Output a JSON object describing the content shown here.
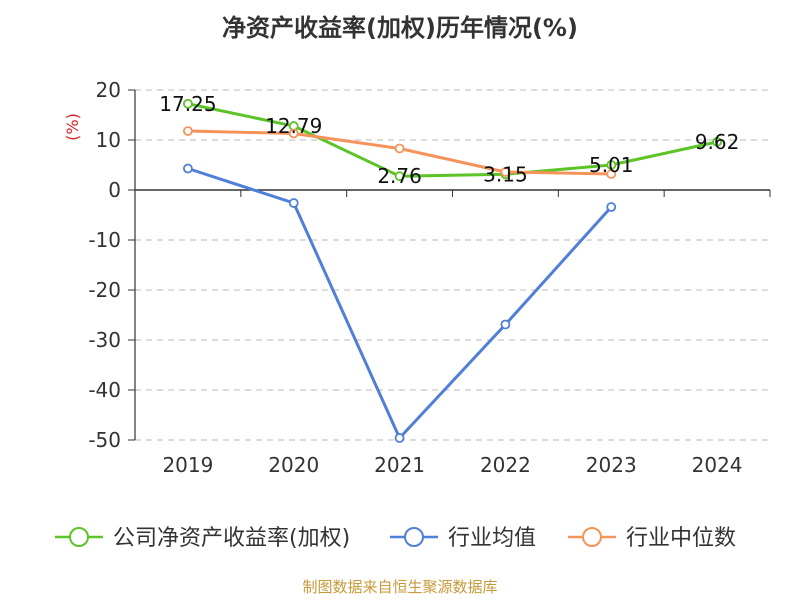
{
  "title": "净资产收益率(加权)历年情况(%)",
  "footer": "制图数据来自恒生聚源数据库",
  "chart_data": {
    "type": "line",
    "title": "净资产收益率(加权)历年情况(%)",
    "ylabel": "(%)",
    "xlabel": "",
    "categories": [
      "2019",
      "2020",
      "2021",
      "2022",
      "2023",
      "2024"
    ],
    "ylim": [
      -50,
      20
    ],
    "yticks": [
      20,
      10,
      0,
      -10,
      -20,
      -30,
      -40,
      -50
    ],
    "grid": true,
    "legend_position": "bottom",
    "series": [
      {
        "name": "公司净资产收益率(加权)",
        "color": "#5dc427",
        "values": [
          17.25,
          12.79,
          2.76,
          3.15,
          5.01,
          9.62
        ],
        "labels": [
          "17.25",
          "12.79",
          "2.76",
          "3.15",
          "5.01",
          "9.62"
        ]
      },
      {
        "name": "行业均值",
        "color": "#4f7fd8",
        "values": [
          4.3,
          -2.6,
          -49.6,
          -26.9,
          -3.4,
          null
        ]
      },
      {
        "name": "行业中位数",
        "color": "#f5935a",
        "values": [
          11.8,
          11.3,
          8.3,
          3.6,
          3.2,
          null
        ]
      }
    ]
  }
}
